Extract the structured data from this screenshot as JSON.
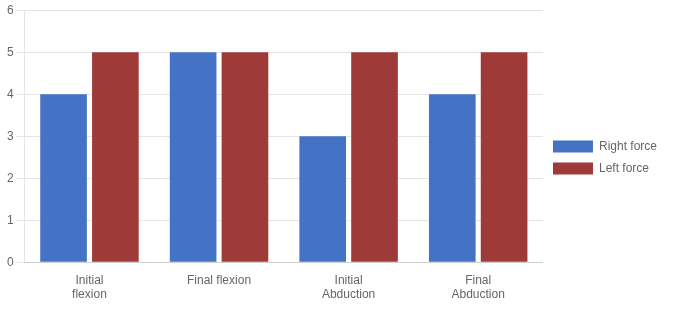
{
  "chart_data": {
    "type": "bar",
    "categories": [
      "Initial\nflexion",
      "Final flexion",
      "Initial\nAbduction",
      "Final\nAbduction"
    ],
    "series": [
      {
        "name": "Right force",
        "color": "#4472C4",
        "values": [
          4,
          5,
          3,
          4
        ]
      },
      {
        "name": "Left force",
        "color": "#9E3A38",
        "values": [
          5,
          5,
          5,
          5
        ]
      }
    ],
    "ylim": [
      0,
      6
    ],
    "yticks": [
      0,
      1,
      2,
      3,
      4,
      5,
      6
    ],
    "grid": true,
    "legend": "right"
  }
}
